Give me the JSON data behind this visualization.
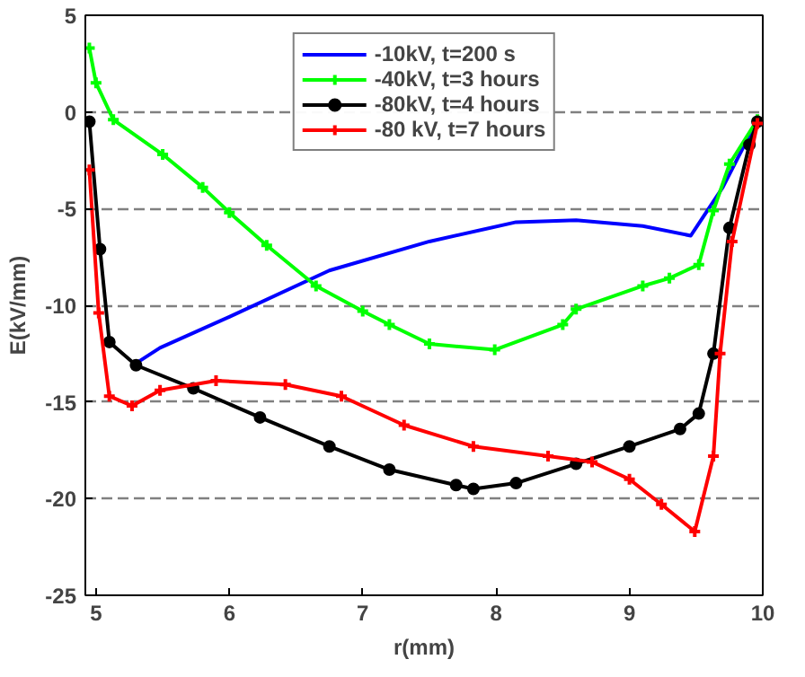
{
  "chart_data": {
    "type": "line",
    "xlabel": "r(mm)",
    "ylabel": "E(kV/mm)",
    "xlim": [
      4.92,
      10
    ],
    "ylim": [
      -25,
      5
    ],
    "xticks": [
      5,
      6,
      7,
      8,
      9,
      10
    ],
    "yticks": [
      5,
      0,
      -5,
      -10,
      -15,
      -20,
      -25
    ],
    "grid": "y",
    "legend": "top",
    "line_style": "solid",
    "series": [
      {
        "name": "-10kV, t=200 s",
        "color": "#0000ff",
        "marker": "none",
        "x": [
          5.3,
          5.48,
          6.0,
          6.75,
          7.5,
          8.15,
          8.6,
          9.1,
          9.46,
          9.7,
          9.96
        ],
        "values": [
          -13.0,
          -12.2,
          -10.6,
          -8.2,
          -6.7,
          -5.7,
          -5.6,
          -5.9,
          -6.4,
          -3.9,
          -0.4
        ]
      },
      {
        "name": "-40kV, t=3 hours",
        "color": "#00ff00",
        "marker": "cross",
        "x": [
          4.95,
          5.0,
          5.13,
          5.5,
          5.8,
          6.0,
          6.28,
          6.65,
          7.0,
          7.2,
          7.5,
          7.99,
          8.5,
          8.6,
          9.1,
          9.3,
          9.52,
          9.63,
          9.75,
          9.96
        ],
        "values": [
          3.3,
          1.5,
          -0.4,
          -2.2,
          -3.9,
          -5.2,
          -6.9,
          -9.0,
          -10.3,
          -11.0,
          -12.0,
          -12.3,
          -11.0,
          -10.2,
          -9.0,
          -8.6,
          -7.9,
          -5.1,
          -2.7,
          -0.4
        ]
      },
      {
        "name": "-80kV, t=4 hours",
        "color": "#000000",
        "marker": "circle",
        "x": [
          4.95,
          5.03,
          5.1,
          5.3,
          5.73,
          6.23,
          6.75,
          7.2,
          7.7,
          7.83,
          8.15,
          8.6,
          9.0,
          9.38,
          9.52,
          9.63,
          9.75,
          9.9,
          9.96
        ],
        "values": [
          -0.5,
          -7.1,
          -11.9,
          -13.1,
          -14.3,
          -15.8,
          -17.3,
          -18.5,
          -19.3,
          -19.5,
          -19.2,
          -18.2,
          -17.3,
          -16.4,
          -15.6,
          -12.5,
          -6.0,
          -1.7,
          -0.5
        ]
      },
      {
        "name": "-80 kV, t=7 hours",
        "color": "#ff0000",
        "marker": "cross",
        "x": [
          4.95,
          5.02,
          5.1,
          5.27,
          5.48,
          5.9,
          6.42,
          6.84,
          7.31,
          7.83,
          8.39,
          8.72,
          9.0,
          9.24,
          9.49,
          9.63,
          9.68,
          9.77,
          9.96
        ],
        "values": [
          -3.0,
          -10.4,
          -14.7,
          -15.2,
          -14.4,
          -13.9,
          -14.1,
          -14.7,
          -16.2,
          -17.3,
          -17.8,
          -18.1,
          -19.0,
          -20.3,
          -21.7,
          -17.8,
          -12.5,
          -6.7,
          -0.6
        ]
      }
    ]
  }
}
